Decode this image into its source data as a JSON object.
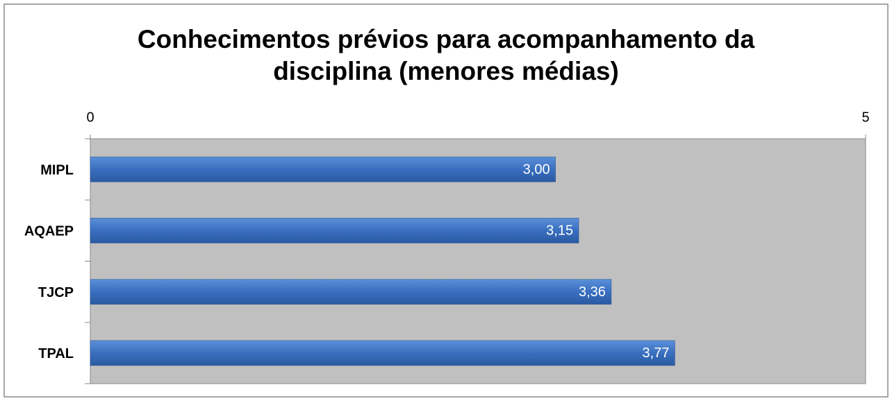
{
  "chart_data": {
    "type": "bar",
    "orientation": "horizontal",
    "title": "Conhecimentos prévios para acompanhamento da disciplina (menores médias)",
    "categories": [
      "MIPL",
      "AQAEP",
      "TJCP",
      "TPAL"
    ],
    "values": [
      3.0,
      3.15,
      3.36,
      3.77
    ],
    "value_labels": [
      "3,00",
      "3,15",
      "3,36",
      "3,77"
    ],
    "color": "#3a6fc0",
    "xlim": [
      0,
      5
    ],
    "xticks": [
      0,
      5
    ],
    "plot_background": "#c0c0c0"
  }
}
